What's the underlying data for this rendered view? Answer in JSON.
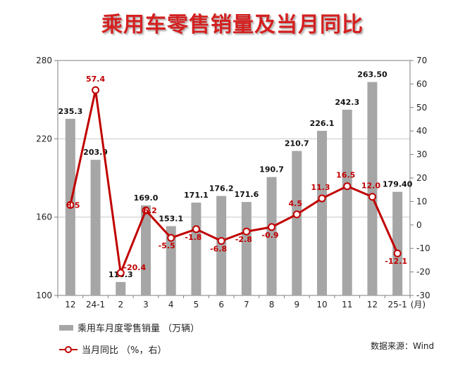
{
  "chart_data": {
    "type": "bar+line",
    "title": "乘用车零售销量及当月同比",
    "categories": [
      "12",
      "24-1",
      "2",
      "3",
      "4",
      "5",
      "6",
      "7",
      "8",
      "9",
      "10",
      "11",
      "12",
      "25-1"
    ],
    "x_unit_label": "(月)",
    "series": [
      {
        "name": "乘用车月度零售销量 （万辆）",
        "type": "bar",
        "axis": "left",
        "color": "#a6a6a6",
        "values": [
          235.3,
          203.9,
          110.3,
          169.0,
          153.1,
          171.1,
          176.2,
          171.6,
          190.7,
          210.7,
          226.1,
          242.3,
          263.5,
          179.4
        ],
        "labels": [
          "235.3",
          "203.9",
          "110.3",
          "169.0",
          "153.1",
          "171.1",
          "176.2",
          "171.6",
          "190.7",
          "210.7",
          "226.1",
          "242.3",
          "263.50",
          "179.40"
        ]
      },
      {
        "name": "当月同比 （%，右）",
        "type": "line",
        "axis": "right",
        "color": "#c00000",
        "values": [
          8.5,
          57.4,
          -20.4,
          6.2,
          -5.5,
          -1.8,
          -6.8,
          -2.8,
          -0.9,
          4.5,
          11.3,
          16.5,
          12.0,
          -12.1
        ],
        "labels": [
          "8.5",
          "57.4",
          "-20.4",
          "6.2",
          "-5.5",
          "-1.8",
          "-6.8",
          "-2.8",
          "-0.9",
          "4.5",
          "11.3",
          "16.5",
          "12.0",
          "-12.1"
        ]
      }
    ],
    "y_left": {
      "lim": [
        100,
        280
      ],
      "ticks": [
        100,
        160,
        220,
        280
      ]
    },
    "y_right": {
      "lim": [
        -30,
        70
      ],
      "ticks": [
        -30,
        -20,
        -10,
        0,
        10,
        20,
        30,
        40,
        50,
        60,
        70
      ]
    },
    "grid": "horizontal",
    "legend": "bottom-left",
    "source": "数据来源：Wind"
  }
}
